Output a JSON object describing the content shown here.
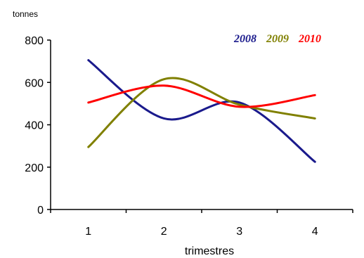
{
  "chart_data": {
    "type": "line",
    "x": [
      1,
      2,
      3,
      4
    ],
    "xlabel": "trimestres",
    "ylabel": "tonnes",
    "ylim": [
      0,
      800
    ],
    "yticks": [
      "0",
      "200",
      "400",
      "600",
      "800"
    ],
    "xticks": [
      "1",
      "2",
      "3",
      "4"
    ],
    "grid": false,
    "legend_position": "top-right",
    "smooth": true,
    "series": [
      {
        "name": "2008",
        "values": [
          705,
          430,
          505,
          225
        ],
        "color": "#1a1a8c"
      },
      {
        "name": "2009",
        "values": [
          295,
          615,
          495,
          430
        ],
        "color": "#808000"
      },
      {
        "name": "2010",
        "values": [
          505,
          585,
          485,
          540
        ],
        "color": "#ff0000"
      }
    ]
  }
}
